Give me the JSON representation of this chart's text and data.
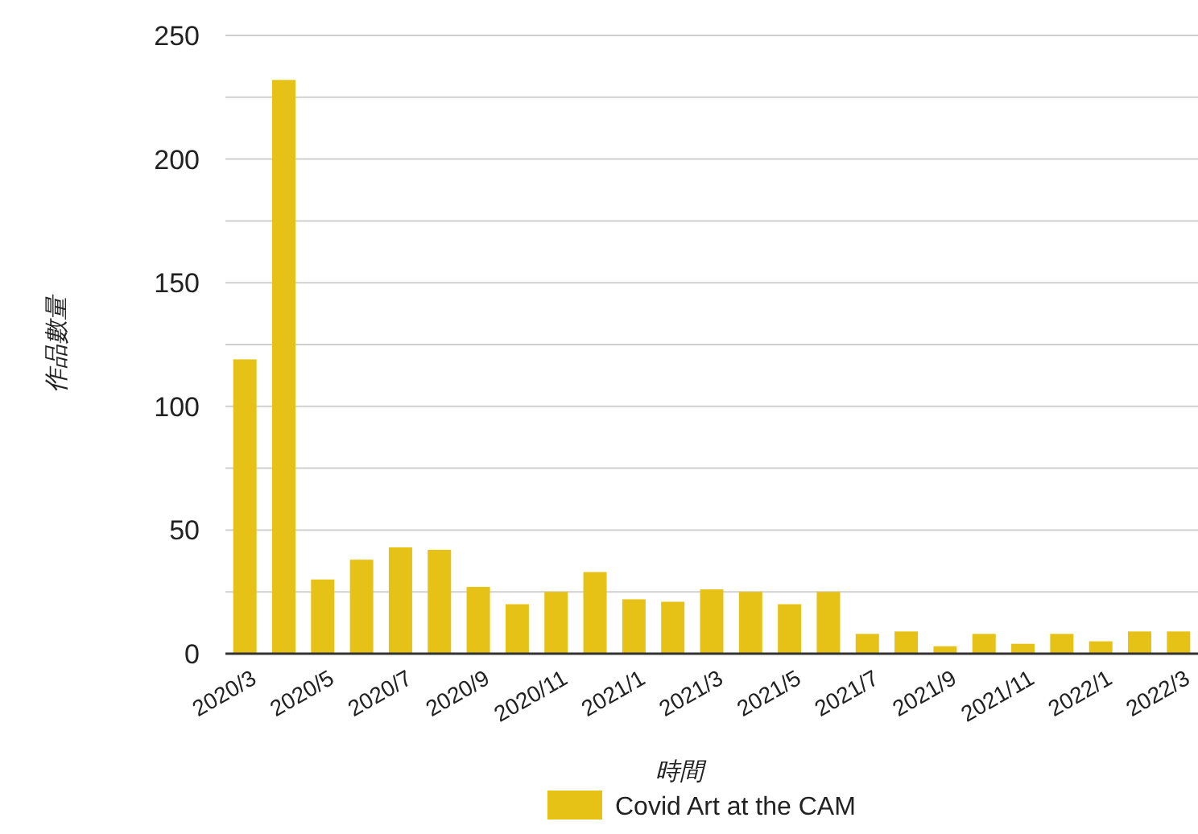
{
  "chart_data": {
    "type": "bar",
    "xlabel": "時間",
    "ylabel": "作品數量",
    "categories": [
      "2020/3",
      null,
      "2020/5",
      null,
      "2020/7",
      null,
      "2020/9",
      null,
      "2020/11",
      null,
      "2021/1",
      null,
      "2021/3",
      null,
      "2021/5",
      null,
      "2021/7",
      null,
      "2021/9",
      null,
      "2021/11",
      null,
      "2022/1",
      null,
      "2022/3"
    ],
    "series": [
      {
        "name": "Covid Art at the CAM",
        "color": "#e6c217",
        "values": [
          119,
          232,
          30,
          38,
          43,
          42,
          27,
          20,
          25,
          33,
          22,
          21,
          26,
          25,
          20,
          25,
          8,
          9,
          3,
          8,
          4,
          8,
          5,
          9,
          9
        ]
      }
    ],
    "ylim": [
      0,
      250
    ],
    "yticks": [
      0,
      {
        "value": 25,
        "label": null
      },
      50,
      {
        "value": 75,
        "label": null
      },
      100,
      {
        "value": 125,
        "label": null
      },
      150,
      {
        "value": 175,
        "label": null
      },
      200,
      {
        "value": 225,
        "label": null
      },
      250
    ],
    "grid": "y",
    "legend": "bottom"
  }
}
